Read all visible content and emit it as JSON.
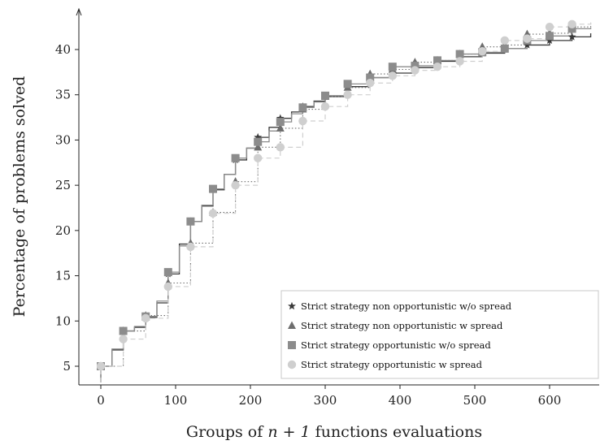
{
  "chart_data": {
    "type": "line",
    "title": "",
    "xlabel": "Groups of n + 1 functions evaluations",
    "xlabel_parts": {
      "prefix": "Groups of ",
      "math": "n + 1",
      "suffix": " functions evaluations"
    },
    "ylabel": "Percentage of problems solved",
    "xlim": [
      -30,
      655
    ],
    "ylim": [
      3,
      45
    ],
    "xticks": [
      0,
      100,
      200,
      300,
      400,
      500,
      600
    ],
    "yticks": [
      5,
      10,
      15,
      20,
      25,
      30,
      35,
      40
    ],
    "grid": false,
    "legend_position": "lower-right",
    "series": [
      {
        "name": "Strict strategy non opportunistic w/o spread",
        "marker": "star",
        "line": "solid",
        "color": "#3a3a3a",
        "marker_x": [
          0,
          30,
          60,
          90,
          120,
          150,
          180,
          210,
          240,
          270,
          300,
          330,
          360,
          390,
          420,
          450,
          480,
          510,
          540,
          570,
          600,
          630
        ],
        "x": [
          0,
          15,
          30,
          45,
          60,
          75,
          90,
          105,
          120,
          135,
          150,
          165,
          180,
          195,
          210,
          225,
          240,
          255,
          270,
          285,
          300,
          330,
          360,
          390,
          420,
          450,
          480,
          510,
          540,
          570,
          600,
          630,
          655
        ],
        "y": [
          5.0,
          6.8,
          8.9,
          9.3,
          10.4,
          12.0,
          15.2,
          18.5,
          21.0,
          22.7,
          24.5,
          26.2,
          27.8,
          29.1,
          30.3,
          31.4,
          32.4,
          33.1,
          33.7,
          34.3,
          34.8,
          35.9,
          36.9,
          37.4,
          38.0,
          38.7,
          39.2,
          39.6,
          40.1,
          40.5,
          41.0,
          41.4,
          41.8
        ]
      },
      {
        "name": "Strict strategy non opportunistic w spread",
        "marker": "triangle",
        "line": "dotted",
        "color": "#6e6e6e",
        "marker_x": [
          0,
          30,
          60,
          90,
          120,
          150,
          180,
          210,
          240,
          270,
          300,
          330,
          360,
          390,
          420,
          450,
          480,
          510,
          540,
          570,
          600,
          630
        ],
        "x": [
          0,
          30,
          60,
          90,
          120,
          150,
          180,
          210,
          240,
          270,
          300,
          330,
          360,
          390,
          420,
          450,
          480,
          510,
          540,
          570,
          600,
          630,
          655
        ],
        "y": [
          5.0,
          8.9,
          10.6,
          14.2,
          18.6,
          22.0,
          25.4,
          29.2,
          31.3,
          33.4,
          34.8,
          35.8,
          37.3,
          37.8,
          38.6,
          38.8,
          39.5,
          40.3,
          40.5,
          41.7,
          41.8,
          42.5,
          42.9
        ]
      },
      {
        "name": "Strict strategy opportunistic w/o spread",
        "marker": "square",
        "line": "solid",
        "color": "#8c8c8c",
        "marker_x": [
          0,
          30,
          60,
          90,
          120,
          150,
          180,
          210,
          240,
          270,
          300,
          330,
          360,
          390,
          420,
          450,
          480,
          510,
          540,
          570,
          600,
          630
        ],
        "x": [
          0,
          15,
          30,
          45,
          60,
          75,
          90,
          105,
          120,
          135,
          150,
          165,
          180,
          195,
          210,
          225,
          240,
          255,
          270,
          285,
          300,
          330,
          360,
          390,
          420,
          450,
          480,
          510,
          540,
          570,
          600,
          630,
          655
        ],
        "y": [
          5.0,
          6.9,
          8.9,
          9.4,
          10.5,
          12.2,
          15.4,
          18.3,
          21.0,
          22.8,
          24.6,
          26.2,
          28.0,
          29.1,
          29.8,
          31.0,
          32.0,
          32.9,
          33.6,
          34.2,
          34.9,
          36.2,
          36.9,
          38.1,
          38.2,
          38.8,
          39.5,
          39.7,
          40.1,
          41.0,
          41.5,
          42.3,
          42.4
        ]
      },
      {
        "name": "Strict strategy opportunistic w spread",
        "marker": "circle",
        "line": "dashed",
        "color": "#cfcfcf",
        "marker_x": [
          0,
          30,
          60,
          90,
          120,
          150,
          180,
          210,
          240,
          270,
          300,
          330,
          360,
          390,
          420,
          450,
          480,
          510,
          540,
          570,
          600,
          630
        ],
        "x": [
          0,
          30,
          60,
          90,
          120,
          150,
          180,
          210,
          240,
          270,
          300,
          330,
          360,
          390,
          420,
          450,
          480,
          510,
          540,
          570,
          600,
          630,
          655
        ],
        "y": [
          5.0,
          8.0,
          10.3,
          13.8,
          18.2,
          21.9,
          25.0,
          28.0,
          29.2,
          32.1,
          33.7,
          35.0,
          36.3,
          37.1,
          37.7,
          38.1,
          38.7,
          39.8,
          41.0,
          41.2,
          42.5,
          42.8,
          43.0
        ]
      }
    ]
  }
}
